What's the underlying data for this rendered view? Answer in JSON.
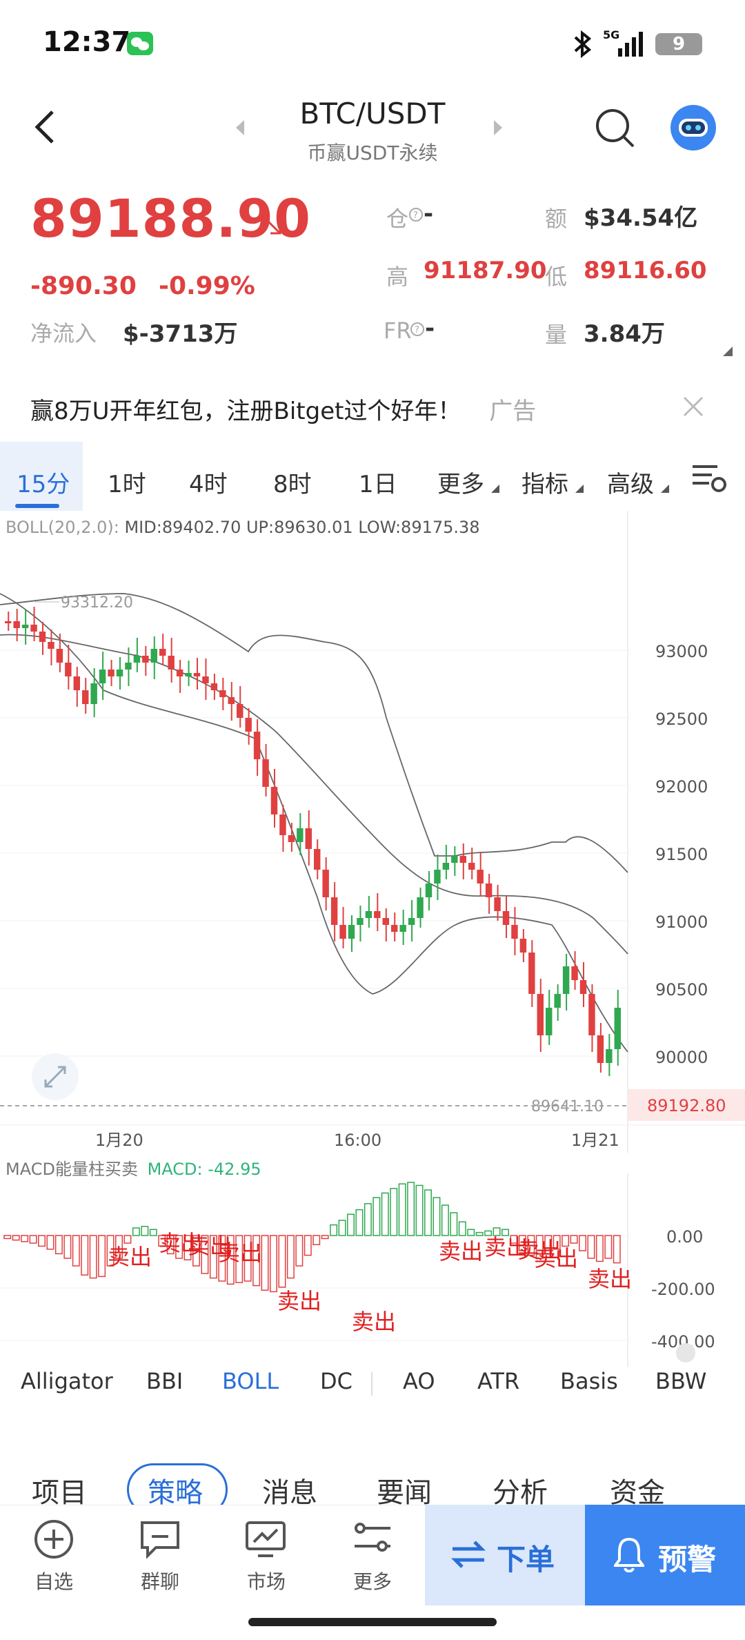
{
  "status": {
    "time": "12:37",
    "battery": "9",
    "network": "5G"
  },
  "header": {
    "pair": "BTC/USDT",
    "subtitle": "币赢USDT永续"
  },
  "ticker": {
    "price": "89188.90",
    "change": "-890.30",
    "change_pct": "-0.99%",
    "netflow_label": "净流入",
    "netflow_value": "$-3713万",
    "oi_label": "仓",
    "oi_value": "-",
    "amount_label": "额",
    "amount_value": "$34.54亿",
    "high_label": "高",
    "high_value": "91187.90",
    "low_label": "低",
    "low_value": "89116.60",
    "fr_label": "FR",
    "fr_value": "-",
    "vol_label": "量",
    "vol_value": "3.84万"
  },
  "ad": {
    "text": "赢8万U开年红包，注册Bitget过个好年！",
    "tag": "广告"
  },
  "timeframes": [
    "15分",
    "1时",
    "4时",
    "8时",
    "1日",
    "更多",
    "指标",
    "高级"
  ],
  "chart": {
    "boll_label": "BOLL(20,2.0):",
    "boll_values": "MID:89402.70 UP:89630.01 LOW:89175.38",
    "y_ticks": [
      "93000",
      "92500",
      "92000",
      "91500",
      "91000",
      "90500",
      "90000"
    ],
    "max_label": "93312.20",
    "min_label": "89641.10",
    "last_price": "89192.80",
    "x_ticks": [
      "1月20",
      "16:00",
      "1月21"
    ]
  },
  "macd": {
    "label": "MACD能量柱买卖",
    "value": "MACD: -42.95",
    "y_ticks": [
      "0.00",
      "-200.00",
      "-400.00"
    ],
    "signal": "卖出"
  },
  "indicators": [
    "Alligator",
    "BBI",
    "BOLL",
    "DC",
    "AO",
    "ATR",
    "Basis",
    "BBW"
  ],
  "subnav": [
    "项目",
    "策略",
    "消息",
    "要闻",
    "分析",
    "资金"
  ],
  "bottom_nav": {
    "watch": "自选",
    "chat": "群聊",
    "market": "市场",
    "more": "更多",
    "order": "下单",
    "alert": "预警"
  },
  "colors": {
    "up": "#2fa84f",
    "down": "#e04040",
    "accent": "#2a6fd8"
  }
}
